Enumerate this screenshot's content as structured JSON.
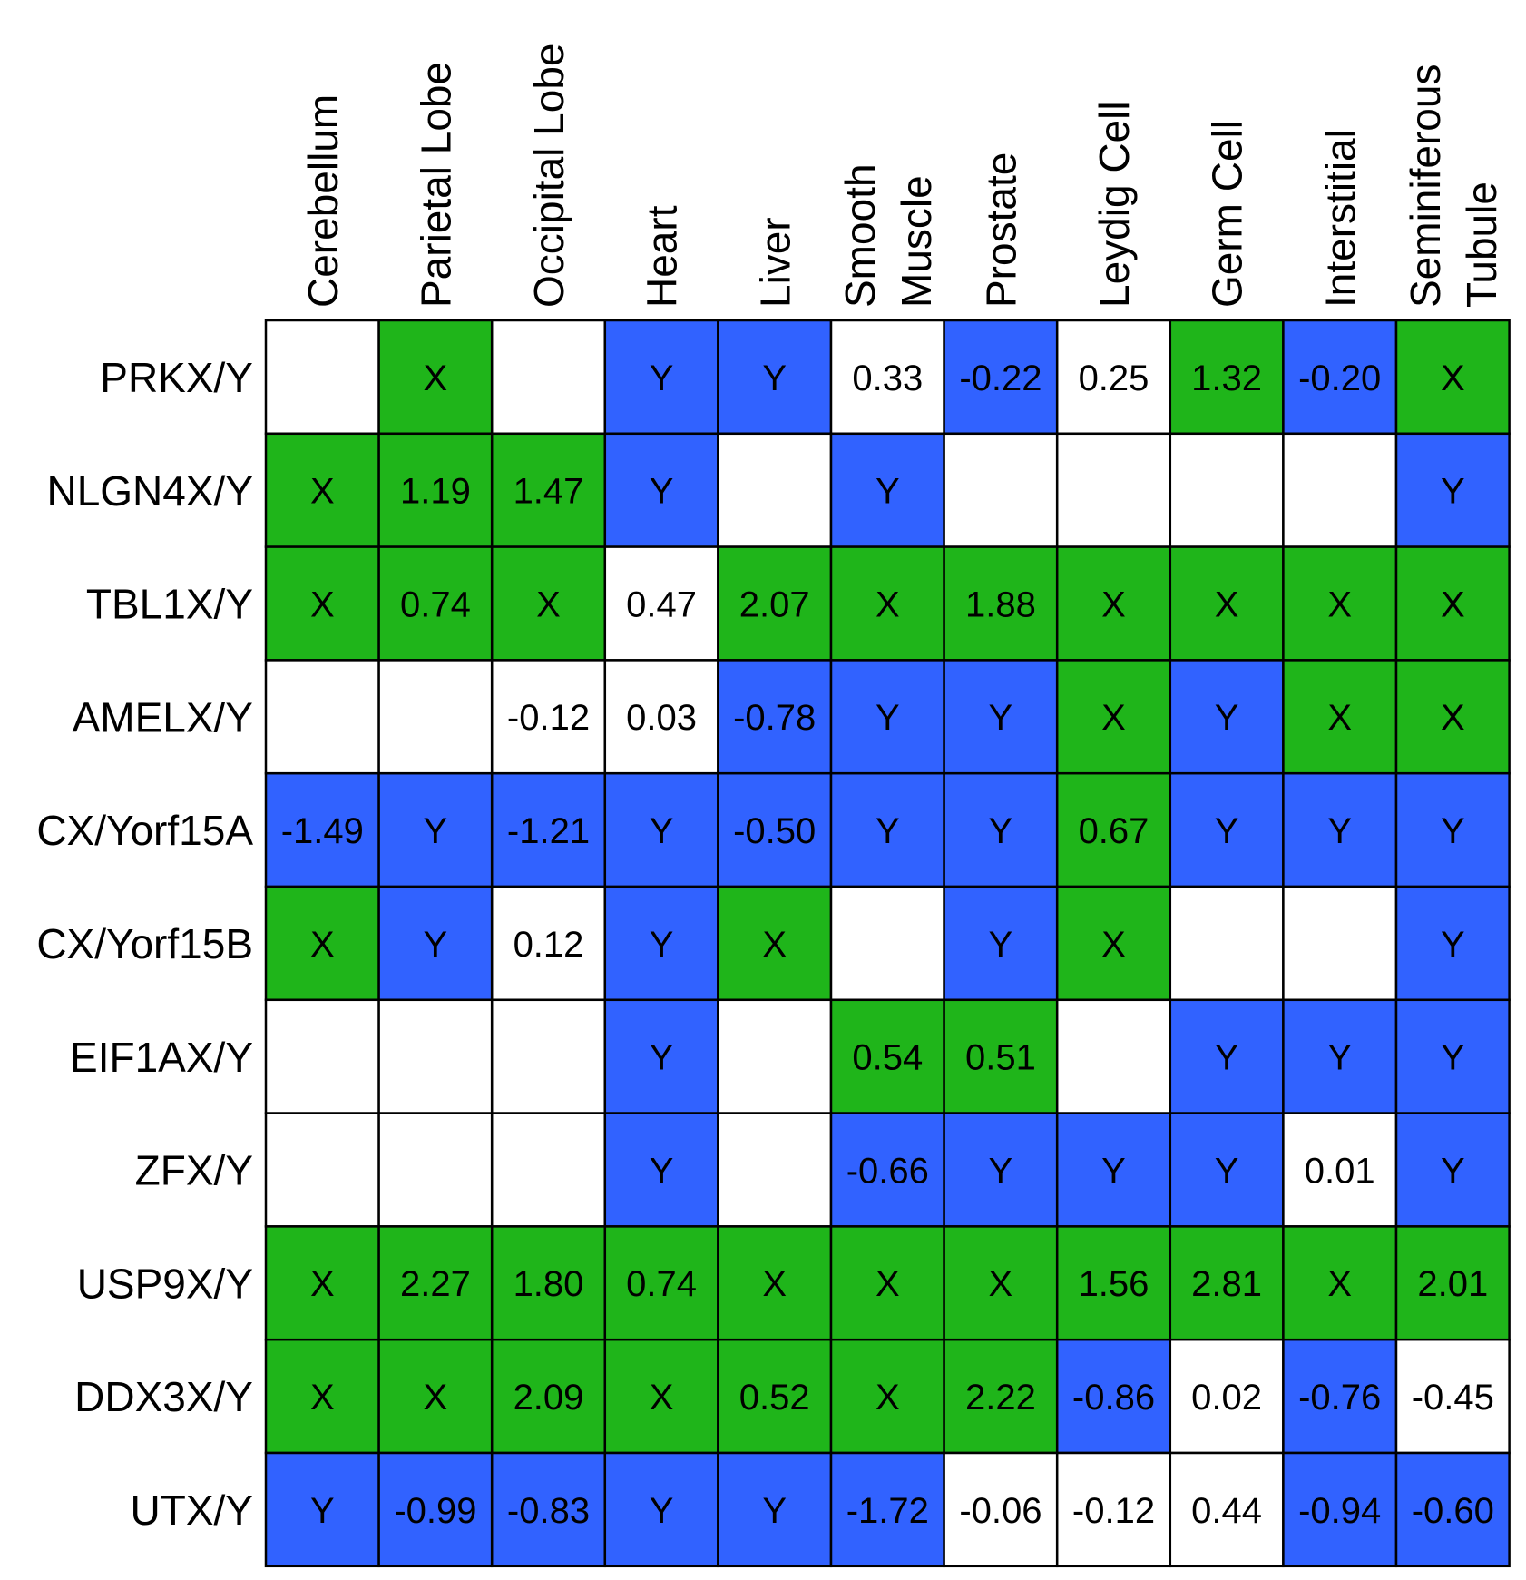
{
  "colors": {
    "X": "#1fb51a",
    "Y": "#3162ff",
    "none": "#ffffff",
    "border": "#000000",
    "text": "#000000"
  },
  "chart_data": {
    "type": "heatmap",
    "columns": [
      [
        "Cerebellum"
      ],
      [
        "Parietal Lobe"
      ],
      [
        "Occipital Lobe"
      ],
      [
        "Heart"
      ],
      [
        "Liver"
      ],
      [
        "Smooth",
        "Muscle"
      ],
      [
        "Prostate"
      ],
      [
        "Leydig Cell"
      ],
      [
        "Germ Cell"
      ],
      [
        "Interstitial"
      ],
      [
        "Seminiferous",
        "Tubule"
      ]
    ],
    "rows": [
      {
        "gene": "PRKX/Y",
        "cells": [
          {
            "text": "",
            "color": "none"
          },
          {
            "text": "X",
            "color": "X"
          },
          {
            "text": "",
            "color": "none"
          },
          {
            "text": "Y",
            "color": "Y"
          },
          {
            "text": "Y",
            "color": "Y"
          },
          {
            "text": "0.33",
            "color": "none"
          },
          {
            "text": "-0.22",
            "color": "Y"
          },
          {
            "text": "0.25",
            "color": "none"
          },
          {
            "text": "1.32",
            "color": "X"
          },
          {
            "text": "-0.20",
            "color": "Y"
          },
          {
            "text": "X",
            "color": "X"
          }
        ]
      },
      {
        "gene": "NLGN4X/Y",
        "cells": [
          {
            "text": "X",
            "color": "X"
          },
          {
            "text": "1.19",
            "color": "X"
          },
          {
            "text": "1.47",
            "color": "X"
          },
          {
            "text": "Y",
            "color": "Y"
          },
          {
            "text": "",
            "color": "none"
          },
          {
            "text": "Y",
            "color": "Y"
          },
          {
            "text": "",
            "color": "none"
          },
          {
            "text": "",
            "color": "none"
          },
          {
            "text": "",
            "color": "none"
          },
          {
            "text": "",
            "color": "none"
          },
          {
            "text": "Y",
            "color": "Y"
          }
        ]
      },
      {
        "gene": "TBL1X/Y",
        "cells": [
          {
            "text": "X",
            "color": "X"
          },
          {
            "text": "0.74",
            "color": "X"
          },
          {
            "text": "X",
            "color": "X"
          },
          {
            "text": "0.47",
            "color": "none"
          },
          {
            "text": "2.07",
            "color": "X"
          },
          {
            "text": "X",
            "color": "X"
          },
          {
            "text": "1.88",
            "color": "X"
          },
          {
            "text": "X",
            "color": "X"
          },
          {
            "text": "X",
            "color": "X"
          },
          {
            "text": "X",
            "color": "X"
          },
          {
            "text": "X",
            "color": "X"
          }
        ]
      },
      {
        "gene": "AMELX/Y",
        "cells": [
          {
            "text": "",
            "color": "none"
          },
          {
            "text": "",
            "color": "none"
          },
          {
            "text": "-0.12",
            "color": "none"
          },
          {
            "text": "0.03",
            "color": "none"
          },
          {
            "text": "-0.78",
            "color": "Y"
          },
          {
            "text": "Y",
            "color": "Y"
          },
          {
            "text": "Y",
            "color": "Y"
          },
          {
            "text": "X",
            "color": "X"
          },
          {
            "text": "Y",
            "color": "Y"
          },
          {
            "text": "X",
            "color": "X"
          },
          {
            "text": "X",
            "color": "X"
          }
        ]
      },
      {
        "gene": "CX/Yorf15A",
        "cells": [
          {
            "text": "-1.49",
            "color": "Y"
          },
          {
            "text": "Y",
            "color": "Y"
          },
          {
            "text": "-1.21",
            "color": "Y"
          },
          {
            "text": "Y",
            "color": "Y"
          },
          {
            "text": "-0.50",
            "color": "Y"
          },
          {
            "text": "Y",
            "color": "Y"
          },
          {
            "text": "Y",
            "color": "Y"
          },
          {
            "text": "0.67",
            "color": "X"
          },
          {
            "text": "Y",
            "color": "Y"
          },
          {
            "text": "Y",
            "color": "Y"
          },
          {
            "text": "Y",
            "color": "Y"
          }
        ]
      },
      {
        "gene": "CX/Yorf15B",
        "cells": [
          {
            "text": "X",
            "color": "X"
          },
          {
            "text": "Y",
            "color": "Y"
          },
          {
            "text": "0.12",
            "color": "none"
          },
          {
            "text": "Y",
            "color": "Y"
          },
          {
            "text": "X",
            "color": "X"
          },
          {
            "text": "",
            "color": "none"
          },
          {
            "text": "Y",
            "color": "Y"
          },
          {
            "text": "X",
            "color": "X"
          },
          {
            "text": "",
            "color": "none"
          },
          {
            "text": "",
            "color": "none"
          },
          {
            "text": "Y",
            "color": "Y"
          }
        ]
      },
      {
        "gene": "EIF1AX/Y",
        "cells": [
          {
            "text": "",
            "color": "none"
          },
          {
            "text": "",
            "color": "none"
          },
          {
            "text": "",
            "color": "none"
          },
          {
            "text": "Y",
            "color": "Y"
          },
          {
            "text": "",
            "color": "none"
          },
          {
            "text": "0.54",
            "color": "X"
          },
          {
            "text": "0.51",
            "color": "X"
          },
          {
            "text": "",
            "color": "none"
          },
          {
            "text": "Y",
            "color": "Y"
          },
          {
            "text": "Y",
            "color": "Y"
          },
          {
            "text": "Y",
            "color": "Y"
          }
        ]
      },
      {
        "gene": "ZFX/Y",
        "cells": [
          {
            "text": "",
            "color": "none"
          },
          {
            "text": "",
            "color": "none"
          },
          {
            "text": "",
            "color": "none"
          },
          {
            "text": "Y",
            "color": "Y"
          },
          {
            "text": "",
            "color": "none"
          },
          {
            "text": "-0.66",
            "color": "Y"
          },
          {
            "text": "Y",
            "color": "Y"
          },
          {
            "text": "Y",
            "color": "Y"
          },
          {
            "text": "Y",
            "color": "Y"
          },
          {
            "text": "0.01",
            "color": "none"
          },
          {
            "text": "Y",
            "color": "Y"
          }
        ]
      },
      {
        "gene": "USP9X/Y",
        "cells": [
          {
            "text": "X",
            "color": "X"
          },
          {
            "text": "2.27",
            "color": "X"
          },
          {
            "text": "1.80",
            "color": "X"
          },
          {
            "text": "0.74",
            "color": "X"
          },
          {
            "text": "X",
            "color": "X"
          },
          {
            "text": "X",
            "color": "X"
          },
          {
            "text": "X",
            "color": "X"
          },
          {
            "text": "1.56",
            "color": "X"
          },
          {
            "text": "2.81",
            "color": "X"
          },
          {
            "text": "X",
            "color": "X"
          },
          {
            "text": "2.01",
            "color": "X"
          }
        ]
      },
      {
        "gene": "DDX3X/Y",
        "cells": [
          {
            "text": "X",
            "color": "X"
          },
          {
            "text": "X",
            "color": "X"
          },
          {
            "text": "2.09",
            "color": "X"
          },
          {
            "text": "X",
            "color": "X"
          },
          {
            "text": "0.52",
            "color": "X"
          },
          {
            "text": "X",
            "color": "X"
          },
          {
            "text": "2.22",
            "color": "X"
          },
          {
            "text": "-0.86",
            "color": "Y"
          },
          {
            "text": "0.02",
            "color": "none"
          },
          {
            "text": "-0.76",
            "color": "Y"
          },
          {
            "text": "-0.45",
            "color": "none"
          }
        ]
      },
      {
        "gene": "UTX/Y",
        "cells": [
          {
            "text": "Y",
            "color": "Y"
          },
          {
            "text": "-0.99",
            "color": "Y"
          },
          {
            "text": "-0.83",
            "color": "Y"
          },
          {
            "text": "Y",
            "color": "Y"
          },
          {
            "text": "Y",
            "color": "Y"
          },
          {
            "text": "-1.72",
            "color": "Y"
          },
          {
            "text": "-0.06",
            "color": "none"
          },
          {
            "text": "-0.12",
            "color": "none"
          },
          {
            "text": "0.44",
            "color": "none"
          },
          {
            "text": "-0.94",
            "color": "Y"
          },
          {
            "text": "-0.60",
            "color": "Y"
          }
        ]
      }
    ]
  }
}
